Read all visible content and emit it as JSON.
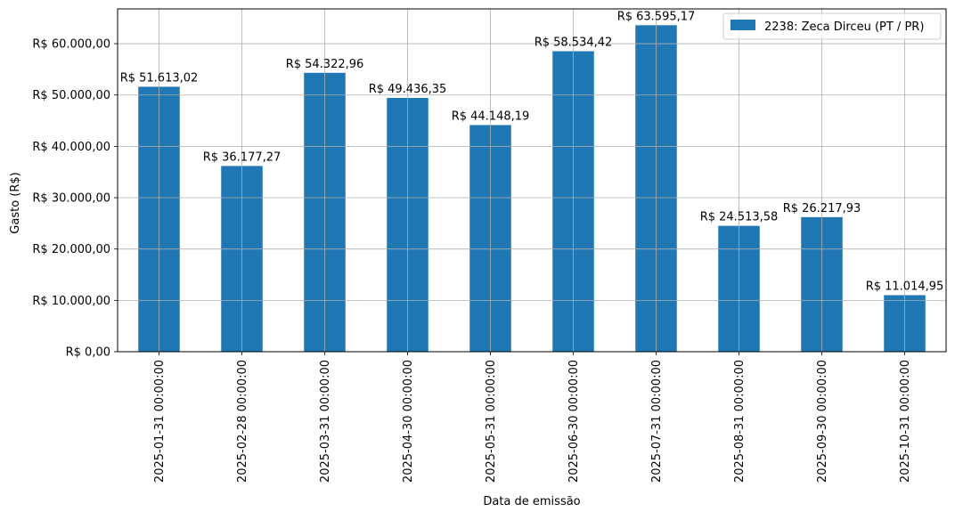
{
  "chart_data": {
    "type": "bar",
    "categories": [
      "2025-01-31 00:00:00",
      "2025-02-28 00:00:00",
      "2025-03-31 00:00:00",
      "2025-04-30 00:00:00",
      "2025-05-31 00:00:00",
      "2025-06-30 00:00:00",
      "2025-07-31 00:00:00",
      "2025-08-31 00:00:00",
      "2025-09-30 00:00:00",
      "2025-10-31 00:00:00"
    ],
    "series": [
      {
        "name": "2238: Zeca Dirceu (PT / PR)",
        "values": [
          51613.02,
          36177.27,
          54322.96,
          49436.35,
          44148.19,
          58534.42,
          63595.17,
          24513.58,
          26217.93,
          11014.95
        ],
        "labels": [
          "R$ 51.613,02",
          "R$ 36.177,27",
          "R$ 54.322,96",
          "R$ 49.436,35",
          "R$ 44.148,19",
          "R$ 58.534,42",
          "R$ 63.595,17",
          "R$ 24.513,58",
          "R$ 26.217,93",
          "R$ 11.014,95"
        ],
        "color": "#1f77b4"
      }
    ],
    "xlabel": "Data de emissão",
    "ylabel": "Gasto (R$)",
    "ylim": [
      0,
      66775
    ],
    "yticks": [
      0,
      10000,
      20000,
      30000,
      40000,
      50000,
      60000
    ],
    "ytick_labels": [
      "R$ 0,00",
      "R$ 10.000,00",
      "R$ 20.000,00",
      "R$ 30.000,00",
      "R$ 40.000,00",
      "R$ 50.000,00",
      "R$ 60.000,00"
    ],
    "grid": true,
    "legend_position": "top-right"
  }
}
